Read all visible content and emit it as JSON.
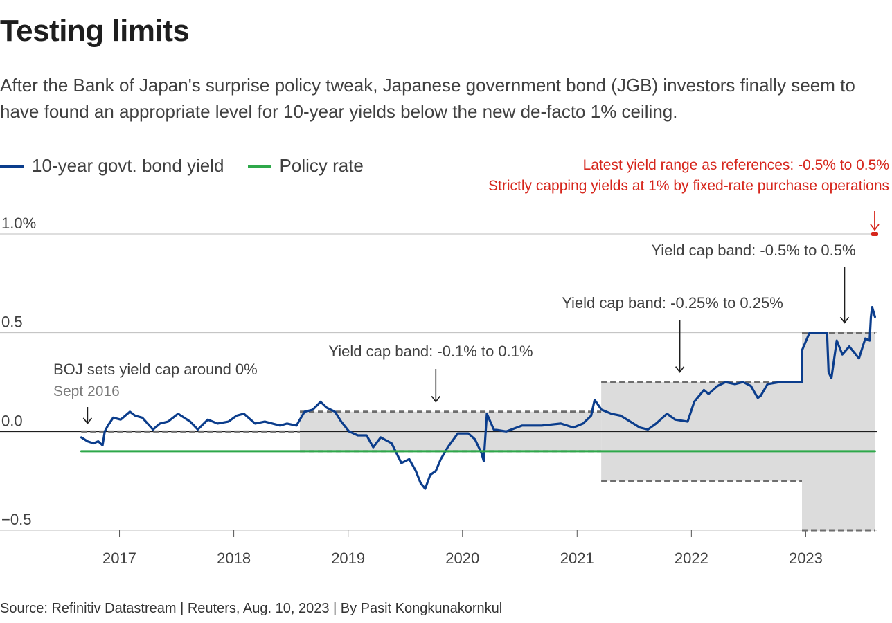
{
  "title": "Testing limits",
  "subtitle": "After the Bank of Japan's surprise policy tweak, Japanese government bond (JGB) investors finally seem to have found an appropriate level for 10-year yields below the new de-facto 1% ceiling.",
  "source": "Source: Refinitiv Datastream | Reuters, Aug. 10, 2023 | By Pasit Kongkunakornkul",
  "legend": [
    {
      "label": "10-year govt. bond yield",
      "color": "#0b3d8c"
    },
    {
      "label": "Policy rate",
      "color": "#2ea84a"
    }
  ],
  "red_notes": [
    "Latest yield range as references: -0.5% to 0.5%",
    "Strictly capping yields at 1% by fixed-rate purchase operations"
  ],
  "chart_data": {
    "type": "line",
    "title": "Testing limits",
    "xlabel": "",
    "ylabel": "",
    "ylim": [
      -0.5,
      1.0
    ],
    "xlim": [
      "2016-09-01",
      "2023-08-10"
    ],
    "x_ticks": [
      "2017",
      "2018",
      "2019",
      "2020",
      "2021",
      "2022",
      "2023"
    ],
    "y_ticks": [
      {
        "value": 1.0,
        "label": "1.0%"
      },
      {
        "value": 0.5,
        "label": "0.5"
      },
      {
        "value": 0.0,
        "label": "0.0"
      },
      {
        "value": -0.5,
        "label": "−0.5"
      }
    ],
    "grid": true,
    "legend_position": "top-left",
    "series": [
      {
        "name": "10-year govt. bond yield",
        "color": "#0b3d8c",
        "points": [
          [
            "2016-09-01",
            -0.03
          ],
          [
            "2016-09-21",
            -0.05
          ],
          [
            "2016-10-10",
            -0.06
          ],
          [
            "2016-10-25",
            -0.05
          ],
          [
            "2016-11-08",
            -0.07
          ],
          [
            "2016-11-15",
            0.0
          ],
          [
            "2016-11-25",
            0.03
          ],
          [
            "2016-12-12",
            0.07
          ],
          [
            "2017-01-05",
            0.06
          ],
          [
            "2017-02-03",
            0.1
          ],
          [
            "2017-02-20",
            0.08
          ],
          [
            "2017-03-15",
            0.07
          ],
          [
            "2017-04-18",
            0.01
          ],
          [
            "2017-05-10",
            0.04
          ],
          [
            "2017-06-05",
            0.05
          ],
          [
            "2017-07-07",
            0.09
          ],
          [
            "2017-08-15",
            0.05
          ],
          [
            "2017-09-08",
            0.01
          ],
          [
            "2017-10-10",
            0.06
          ],
          [
            "2017-11-10",
            0.04
          ],
          [
            "2017-12-15",
            0.05
          ],
          [
            "2018-01-10",
            0.08
          ],
          [
            "2018-02-02",
            0.09
          ],
          [
            "2018-03-10",
            0.04
          ],
          [
            "2018-04-10",
            0.05
          ],
          [
            "2018-05-29",
            0.03
          ],
          [
            "2018-06-20",
            0.04
          ],
          [
            "2018-07-20",
            0.03
          ],
          [
            "2018-07-31",
            0.06
          ],
          [
            "2018-08-15",
            0.1
          ],
          [
            "2018-09-10",
            0.11
          ],
          [
            "2018-10-05",
            0.15
          ],
          [
            "2018-10-25",
            0.12
          ],
          [
            "2018-11-20",
            0.1
          ],
          [
            "2018-12-10",
            0.05
          ],
          [
            "2019-01-04",
            0.0
          ],
          [
            "2019-02-01",
            -0.02
          ],
          [
            "2019-03-01",
            -0.02
          ],
          [
            "2019-03-22",
            -0.08
          ],
          [
            "2019-04-15",
            -0.03
          ],
          [
            "2019-05-20",
            -0.06
          ],
          [
            "2019-06-20",
            -0.16
          ],
          [
            "2019-07-15",
            -0.14
          ],
          [
            "2019-08-05",
            -0.2
          ],
          [
            "2019-08-20",
            -0.26
          ],
          [
            "2019-09-04",
            -0.29
          ],
          [
            "2019-09-20",
            -0.22
          ],
          [
            "2019-10-08",
            -0.2
          ],
          [
            "2019-10-24",
            -0.14
          ],
          [
            "2019-11-15",
            -0.08
          ],
          [
            "2019-12-17",
            -0.01
          ],
          [
            "2020-01-20",
            -0.01
          ],
          [
            "2020-02-10",
            -0.04
          ],
          [
            "2020-03-02",
            -0.11
          ],
          [
            "2020-03-09",
            -0.15
          ],
          [
            "2020-03-19",
            0.09
          ],
          [
            "2020-04-10",
            0.01
          ],
          [
            "2020-05-20",
            0.0
          ],
          [
            "2020-07-10",
            0.03
          ],
          [
            "2020-09-10",
            0.03
          ],
          [
            "2020-11-10",
            0.04
          ],
          [
            "2020-12-20",
            0.02
          ],
          [
            "2021-01-20",
            0.04
          ],
          [
            "2021-02-15",
            0.08
          ],
          [
            "2021-02-26",
            0.16
          ],
          [
            "2021-03-20",
            0.11
          ],
          [
            "2021-04-20",
            0.09
          ],
          [
            "2021-05-20",
            0.08
          ],
          [
            "2021-06-20",
            0.05
          ],
          [
            "2021-07-20",
            0.02
          ],
          [
            "2021-08-15",
            0.01
          ],
          [
            "2021-09-10",
            0.04
          ],
          [
            "2021-10-15",
            0.09
          ],
          [
            "2021-11-10",
            0.06
          ],
          [
            "2021-12-20",
            0.05
          ],
          [
            "2022-01-10",
            0.15
          ],
          [
            "2022-02-10",
            0.21
          ],
          [
            "2022-02-25",
            0.19
          ],
          [
            "2022-03-25",
            0.23
          ],
          [
            "2022-04-20",
            0.25
          ],
          [
            "2022-05-20",
            0.24
          ],
          [
            "2022-06-15",
            0.25
          ],
          [
            "2022-07-10",
            0.23
          ],
          [
            "2022-08-01",
            0.17
          ],
          [
            "2022-08-10",
            0.18
          ],
          [
            "2022-09-01",
            0.24
          ],
          [
            "2022-10-10",
            0.25
          ],
          [
            "2022-12-19",
            0.25
          ],
          [
            "2022-12-20",
            0.41
          ],
          [
            "2023-01-13",
            0.5
          ],
          [
            "2023-02-10",
            0.5
          ],
          [
            "2023-03-10",
            0.5
          ],
          [
            "2023-03-15",
            0.3
          ],
          [
            "2023-03-24",
            0.27
          ],
          [
            "2023-04-10",
            0.46
          ],
          [
            "2023-04-28",
            0.39
          ],
          [
            "2023-05-20",
            0.43
          ],
          [
            "2023-06-20",
            0.37
          ],
          [
            "2023-07-10",
            0.47
          ],
          [
            "2023-07-24",
            0.46
          ],
          [
            "2023-07-28",
            0.58
          ],
          [
            "2023-08-01",
            0.63
          ],
          [
            "2023-08-10",
            0.58
          ]
        ]
      },
      {
        "name": "Policy rate",
        "color": "#2ea84a",
        "points": [
          [
            "2016-09-01",
            -0.1
          ],
          [
            "2023-08-10",
            -0.1
          ]
        ]
      }
    ],
    "bands": [
      {
        "from": "2016-09-01",
        "to": "2018-07-31",
        "low": 0.0,
        "high": 0.0,
        "shaded": false
      },
      {
        "from": "2018-07-31",
        "to": "2021-03-19",
        "low": -0.1,
        "high": 0.1,
        "shaded": true
      },
      {
        "from": "2021-03-19",
        "to": "2022-12-20",
        "low": -0.25,
        "high": 0.25,
        "shaded": true
      },
      {
        "from": "2022-12-20",
        "to": "2023-08-10",
        "low": -0.5,
        "high": 0.5,
        "shaded": true
      }
    ],
    "annotations": [
      {
        "label": "BOJ sets yield cap around 0%",
        "sublabel": "Sept 2016",
        "date": "2016-09-21",
        "value": 0.03
      },
      {
        "label": "Yield cap band: -0.1% to 0.1%",
        "date": "2019-10-08",
        "value": 0.14
      },
      {
        "label": "Yield cap band: -0.25% to 0.25%",
        "date": "2021-11-25",
        "value": 0.29
      },
      {
        "label": "Yield cap band: -0.5% to 0.5%",
        "date": "2023-05-05",
        "value": 0.54
      }
    ],
    "red_marker": {
      "date": "2023-08-10",
      "value": 1.0
    }
  }
}
